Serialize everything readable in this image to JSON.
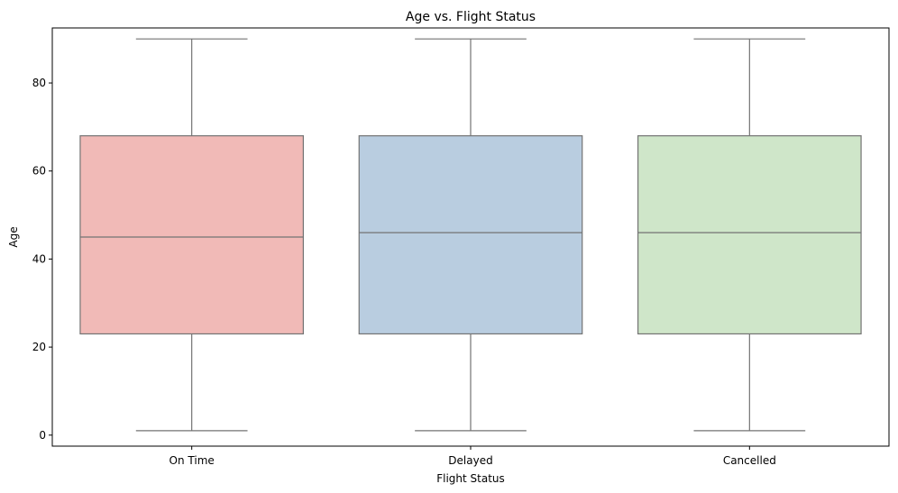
{
  "chart_data": {
    "type": "box",
    "title": "Age vs. Flight Status",
    "xlabel": "Flight Status",
    "ylabel": "Age",
    "ylim": [
      -2.5,
      92.5
    ],
    "yticks": [
      0,
      20,
      40,
      60,
      80
    ],
    "grid": false,
    "categories": [
      "On Time",
      "Delayed",
      "Cancelled"
    ],
    "boxes": [
      {
        "category": "On Time",
        "whisker_low": 1,
        "q1": 23,
        "median": 45,
        "q3": 68,
        "whisker_high": 90,
        "color": "#f1bab7"
      },
      {
        "category": "Delayed",
        "whisker_low": 1,
        "q1": 23,
        "median": 46,
        "q3": 68,
        "whisker_high": 90,
        "color": "#b9cde0"
      },
      {
        "category": "Cancelled",
        "whisker_low": 1,
        "q1": 23,
        "median": 46,
        "q3": 68,
        "whisker_high": 90,
        "color": "#cfe6c9"
      }
    ],
    "line_color": "#737373"
  }
}
